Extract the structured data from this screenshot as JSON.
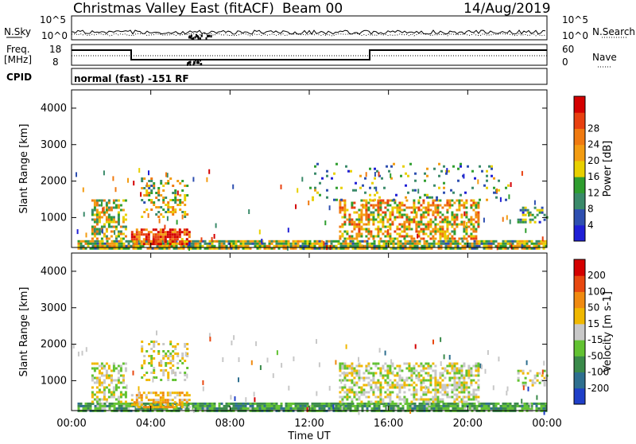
{
  "header": {
    "title": "Christmas Valley East (fitACF)",
    "beam": "Beam 00",
    "date": "14/Aug/2019"
  },
  "aux": {
    "nsky_label": "N.Sky",
    "nsearch_label": "N.Search",
    "nsky_ticks": [
      "10^5",
      "10^0"
    ],
    "nsearch_ticks": [
      "10^5",
      "10^0"
    ],
    "freq_label": "Freq.",
    "freq_unit": "[MHz]",
    "freq_ticks": [
      "18",
      "8"
    ],
    "nave_label": "Nave",
    "nave_ticks": [
      "60",
      "0"
    ],
    "cpid_label": "CPID",
    "cpid_text": "normal (fast) -151 RF"
  },
  "x_axis": {
    "label": "Time UT",
    "ticks": [
      "00:00",
      "04:00",
      "08:00",
      "12:00",
      "16:00",
      "20:00",
      "00:00"
    ]
  },
  "chart_data": [
    {
      "type": "heatmap",
      "panel": "power",
      "ylabel": "Slant Range [km]",
      "yticks": [
        1000,
        2000,
        3000,
        4000
      ],
      "ylim": [
        180,
        4500
      ],
      "xlim_hours": [
        0,
        24
      ],
      "colorbar": {
        "label": "Power [dB]",
        "ticks": [
          4,
          8,
          12,
          16,
          20,
          24,
          28
        ],
        "colors": [
          "#1f1fd6",
          "#2e4fb0",
          "#3a8a6a",
          "#2f9e2f",
          "#e8d000",
          "#f39c12",
          "#f07a10",
          "#e84010",
          "#d40000"
        ]
      },
      "regions": [
        {
          "t0": 0.3,
          "t1": 24,
          "r0": 180,
          "r1": 380,
          "level": 0.45,
          "density": 0.85
        },
        {
          "t0": 1.0,
          "t1": 2.8,
          "r0": 400,
          "r1": 1500,
          "level": 0.5,
          "density": 0.55
        },
        {
          "t0": 3.0,
          "t1": 6.0,
          "r0": 300,
          "r1": 700,
          "level": 0.85,
          "density": 0.75
        },
        {
          "t0": 3.5,
          "t1": 5.8,
          "r0": 1000,
          "r1": 2100,
          "level": 0.45,
          "density": 0.35
        },
        {
          "t0": 13.5,
          "t1": 20.5,
          "r0": 450,
          "r1": 1500,
          "level": 0.6,
          "density": 0.55
        },
        {
          "t0": 12.0,
          "t1": 22.0,
          "r0": 1500,
          "r1": 2500,
          "level": 0.3,
          "density": 0.08
        },
        {
          "t0": 22.5,
          "t1": 24,
          "r0": 900,
          "r1": 1300,
          "level": 0.3,
          "density": 0.4
        }
      ]
    },
    {
      "type": "heatmap",
      "panel": "velocity",
      "ylabel": "Slant Range [km]",
      "yticks": [
        1000,
        2000,
        3000,
        4000
      ],
      "ylim": [
        180,
        4500
      ],
      "xlim_hours": [
        0,
        24
      ],
      "colorbar": {
        "label": "Velocity [m s-1]",
        "ticks": [
          200,
          100,
          50,
          15,
          -15,
          -50,
          -100,
          -200
        ],
        "colors": [
          "#1f3fc8",
          "#2e6f8f",
          "#3a8a4a",
          "#62c232",
          "#c8c8c8",
          "#f0b800",
          "#f08a10",
          "#e84810",
          "#d40000"
        ]
      },
      "regions": [
        {
          "t0": 0.3,
          "t1": 24,
          "r0": 180,
          "r1": 400,
          "level": -0.4,
          "density": 0.85
        },
        {
          "t0": 1.0,
          "t1": 2.8,
          "r0": 400,
          "r1": 1500,
          "level": 0.0,
          "density": 0.55
        },
        {
          "t0": 3.0,
          "t1": 6.0,
          "r0": 300,
          "r1": 700,
          "level": 0.3,
          "density": 0.6
        },
        {
          "t0": 3.5,
          "t1": 5.8,
          "r0": 1000,
          "r1": 2100,
          "level": 0.05,
          "density": 0.3
        },
        {
          "t0": 13.5,
          "t1": 20.5,
          "r0": 450,
          "r1": 1500,
          "level": 0.0,
          "density": 0.55
        },
        {
          "t0": 22.5,
          "t1": 24,
          "r0": 900,
          "r1": 1300,
          "level": 0.0,
          "density": 0.4
        }
      ]
    }
  ]
}
